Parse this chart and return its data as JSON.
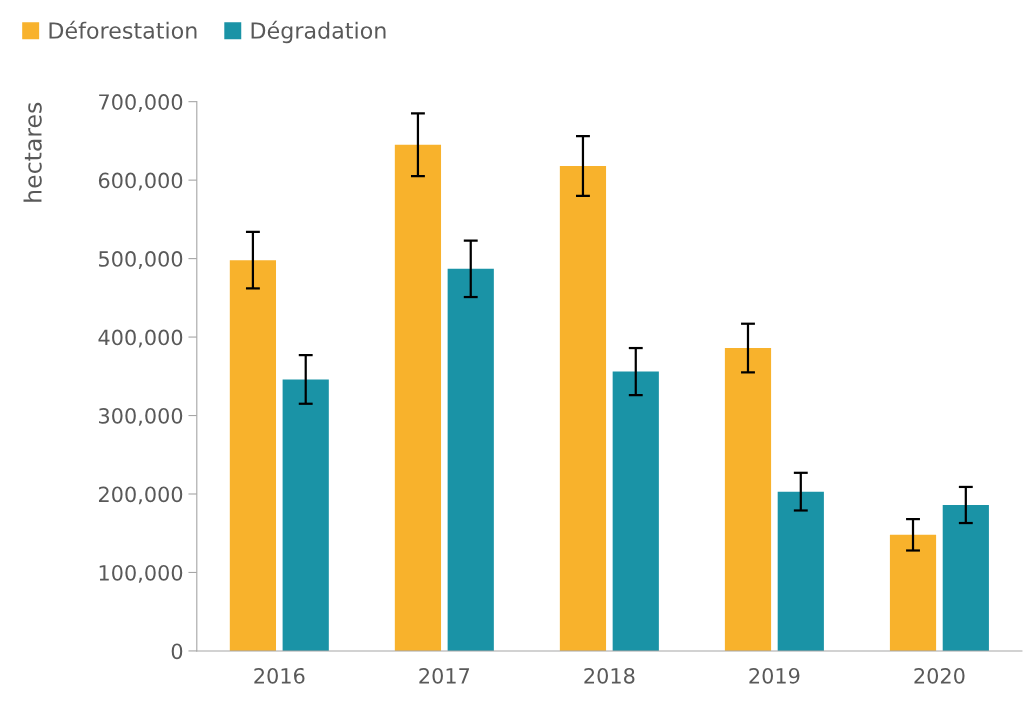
{
  "chart_data": {
    "type": "bar",
    "ylabel": "hectares",
    "categories": [
      "2016",
      "2017",
      "2018",
      "2019",
      "2020"
    ],
    "series": [
      {
        "name": "Déforestation",
        "color": "#f8b22c",
        "values": [
          498000,
          645000,
          618000,
          386000,
          148000
        ],
        "errors": [
          36000,
          40000,
          38000,
          31000,
          20000
        ]
      },
      {
        "name": "Dégradation",
        "color": "#1a93a6",
        "values": [
          346000,
          487000,
          356000,
          203000,
          186000
        ],
        "errors": [
          31000,
          36000,
          30000,
          24000,
          23000
        ]
      }
    ],
    "ylim": [
      0,
      700000
    ],
    "yticks": [
      {
        "value": 0,
        "label": "0"
      },
      {
        "value": 100000,
        "label": "100,000"
      },
      {
        "value": 200000,
        "label": "200,000"
      },
      {
        "value": 300000,
        "label": "300,000"
      },
      {
        "value": 400000,
        "label": "400,000"
      },
      {
        "value": 500000,
        "label": "500,000"
      },
      {
        "value": 600000,
        "label": "600,000"
      },
      {
        "value": 700000,
        "label": "700,000"
      }
    ],
    "grid": false,
    "legend": "top left"
  }
}
